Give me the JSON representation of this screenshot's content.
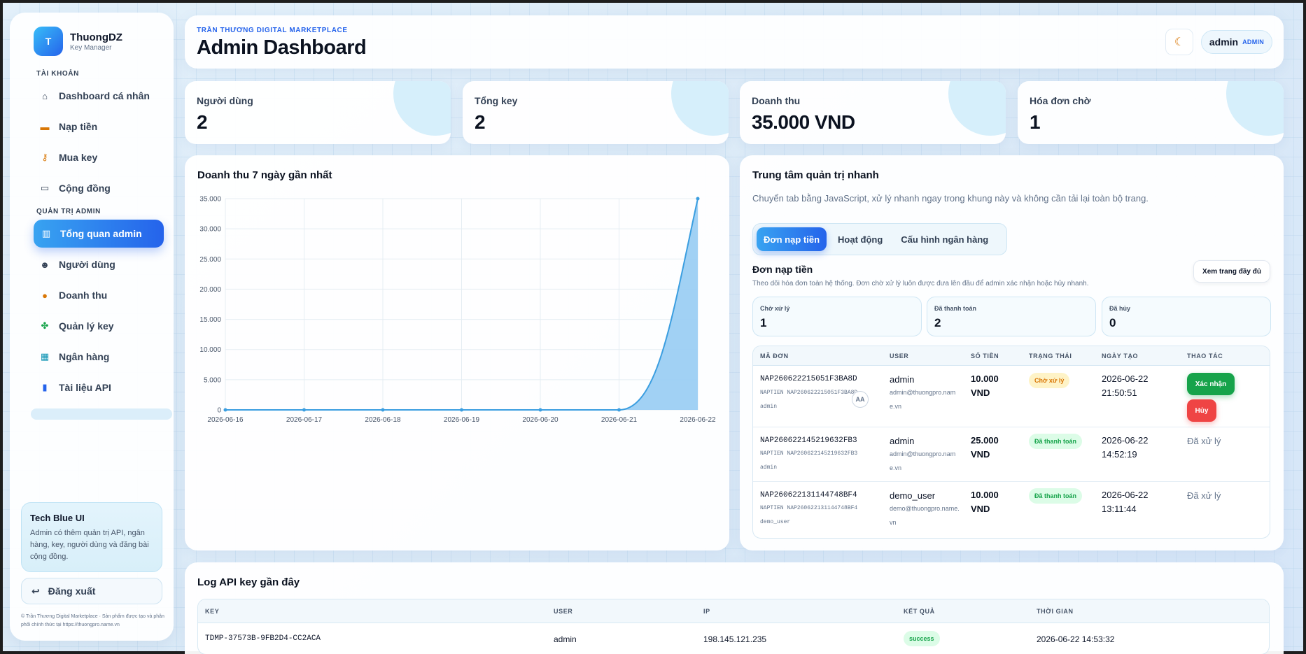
{
  "brand": {
    "logo_letter": "T",
    "name": "ThuongDZ",
    "subtitle": "Key Manager"
  },
  "sidebar": {
    "section_account": "TÀI KHOẢN",
    "section_admin": "QUẢN TRỊ ADMIN",
    "account_items": [
      {
        "label": "Dashboard cá nhân",
        "icon": "home-icon"
      },
      {
        "label": "Nạp tiền",
        "icon": "card-icon"
      },
      {
        "label": "Mua key",
        "icon": "key-icon"
      },
      {
        "label": "Cộng đồng",
        "icon": "chat-icon"
      }
    ],
    "admin_items": [
      {
        "label": "Tổng quan admin",
        "icon": "chart-icon",
        "active": true
      },
      {
        "label": "Người dùng",
        "icon": "users-icon"
      },
      {
        "label": "Doanh thu",
        "icon": "money-bag-icon"
      },
      {
        "label": "Quản lý key",
        "icon": "clover-icon"
      },
      {
        "label": "Ngân hàng",
        "icon": "bank-icon"
      },
      {
        "label": "Tài liệu API",
        "icon": "book-icon"
      }
    ],
    "tip": {
      "title": "Tech Blue UI",
      "text": "Admin có thêm quản trị API, ngân hàng, key, người dùng và đăng bài cộng đồng."
    },
    "logout_label": "Đăng xuất",
    "copyright": "© Trần Thương Digital Marketplace · Sản phẩm được tạo và phân phối chính thức tại https://thuongpro.name.vn"
  },
  "header": {
    "eyebrow": "TRẦN THƯƠNG DIGITAL MARKETPLACE",
    "title": "Admin Dashboard",
    "theme_icon": "moon-icon",
    "user_name": "admin",
    "user_role": "ADMIN"
  },
  "stats": [
    {
      "label": "Người dùng",
      "value": "2"
    },
    {
      "label": "Tổng key",
      "value": "2"
    },
    {
      "label": "Doanh thu",
      "value": "35.000 VND"
    },
    {
      "label": "Hóa đơn chờ",
      "value": "1"
    }
  ],
  "revenue_panel": {
    "title": "Doanh thu 7 ngày gần nhất"
  },
  "chart_data": {
    "type": "area",
    "title": "Doanh thu 7 ngày gần nhất",
    "x": [
      "2026-06-16",
      "2026-06-17",
      "2026-06-18",
      "2026-06-19",
      "2026-06-20",
      "2026-06-21",
      "2026-06-22"
    ],
    "y_ticks": [
      "0",
      "5.000",
      "10.000",
      "15.000",
      "20.000",
      "25.000",
      "30.000",
      "35.000"
    ],
    "series": [
      {
        "values": [
          0,
          0,
          0,
          0,
          0,
          0,
          35000
        ]
      }
    ],
    "ylim": [
      0,
      35000
    ],
    "grid": true,
    "color": "#3b9ee0"
  },
  "quick_admin": {
    "title": "Trung tâm quản trị nhanh",
    "description": "Chuyển tab bằng JavaScript, xử lý nhanh ngay trong khung này và không cần tải lại toàn bộ trang.",
    "tabs": [
      {
        "label": "Đơn nạp tiền",
        "active": true
      },
      {
        "label": "Hoạt động"
      },
      {
        "label": "Cấu hình ngân hàng"
      }
    ],
    "sub_title": "Đơn nạp tiền",
    "sub_desc": "Theo dõi hóa đơn toàn hệ thống. Đơn chờ xử lý luôn được đưa lên đầu để admin xác nhận hoặc hủy nhanh.",
    "full_page_label": "Xem trang đầy đủ",
    "mini_stats": [
      {
        "label": "Chờ xử lý",
        "value": "1"
      },
      {
        "label": "Đã thanh toán",
        "value": "2"
      },
      {
        "label": "Đã hủy",
        "value": "0"
      }
    ],
    "columns": [
      "MÃ ĐƠN",
      "USER",
      "SỐ TIỀN",
      "TRẠNG THÁI",
      "NGÀY TẠO",
      "THAO TÁC"
    ],
    "orders": [
      {
        "code": "NAP260622215051F3BA8D",
        "note": "NAPTIEN NAP260622215051F3BA8D",
        "note_user": "admin",
        "user": "admin",
        "email": "admin@thuongpro.name.vn",
        "amount": "10.000 VND",
        "status": "Chờ xử lý",
        "status_type": "pending",
        "date": "2026-06-22",
        "time": "21:50:51",
        "confirm_label": "Xác nhận",
        "cancel_label": "Hủy",
        "avatar": "AA"
      },
      {
        "code": "NAP260622145219632FB3",
        "note": "NAPTIEN NAP260622145219632FB3",
        "note_user": "admin",
        "user": "admin",
        "email": "admin@thuongpro.name.vn",
        "amount": "25.000 VND",
        "status": "Đã thanh toán",
        "status_type": "paid",
        "date": "2026-06-22",
        "time": "14:52:19",
        "action_text": "Đã xử lý"
      },
      {
        "code": "NAP260622131144748BF4",
        "note": "NAPTIEN NAP260622131144748BF4",
        "note_user": "demo_user",
        "user": "demo_user",
        "email": "demo@thuongpro.name.vn",
        "amount": "10.000 VND",
        "status": "Đã thanh toán",
        "status_type": "paid",
        "date": "2026-06-22",
        "time": "13:11:44",
        "action_text": "Đã xử lý"
      }
    ]
  },
  "api_log": {
    "title": "Log API key gần đây",
    "columns": [
      "KEY",
      "USER",
      "IP",
      "KẾT QUẢ",
      "THỜI GIAN"
    ],
    "rows": [
      {
        "key": "TDMP-37573B-9FB2D4-CC2ACA",
        "user": "admin",
        "ip": "198.145.121.235",
        "result": "success",
        "time": "2026-06-22 14:53:32"
      }
    ]
  }
}
